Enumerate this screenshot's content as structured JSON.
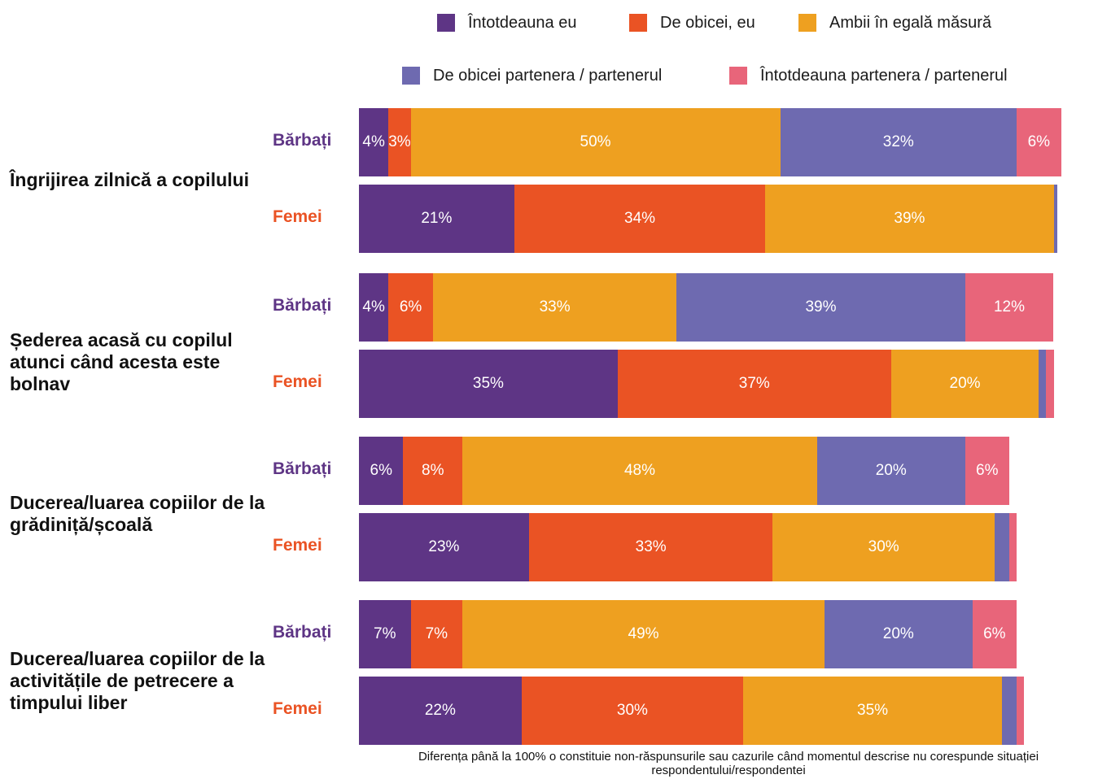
{
  "chart_data": {
    "type": "bar",
    "orientation": "horizontal-stacked",
    "legend": [
      {
        "name": "Întotdeauna eu",
        "color": "#5e3585"
      },
      {
        "name": "De obicei, eu",
        "color": "#ea5324"
      },
      {
        "name": "Ambii în egală măsură",
        "color": "#eea020"
      },
      {
        "name": "De obicei partenera / partenerul",
        "color": "#6e6ab0"
      },
      {
        "name": "Întotdeauna partenera / partenerul",
        "color": "#e8657a"
      }
    ],
    "groups": [
      {
        "title": "Îngrijirea zilnică a copilului",
        "rows": [
          {
            "label": "Bărbați",
            "values": [
              4,
              3,
              50,
              32,
              6
            ],
            "labels": [
              "4%",
              "3%",
              "50%",
              "32%",
              "6%"
            ]
          },
          {
            "label": "Femei",
            "values": [
              21,
              34,
              39,
              0.5,
              0
            ],
            "labels": [
              "21%",
              "34%",
              "39%",
              "",
              ""
            ]
          }
        ]
      },
      {
        "title": "Șederea acasă cu copilul atunci când acesta este bolnav",
        "rows": [
          {
            "label": "Bărbați",
            "values": [
              4,
              6,
              33,
              39,
              12
            ],
            "labels": [
              "4%",
              "6%",
              "33%",
              "39%",
              "12%"
            ]
          },
          {
            "label": "Femei",
            "values": [
              35,
              37,
              20,
              1,
              1
            ],
            "labels": [
              "35%",
              "37%",
              "20%",
              "",
              ""
            ]
          }
        ]
      },
      {
        "title": "Ducerea/luarea copiilor de la grădiniță/școală",
        "rows": [
          {
            "label": "Bărbați",
            "values": [
              6,
              8,
              48,
              20,
              6
            ],
            "labels": [
              "6%",
              "8%",
              "48%",
              "20%",
              "6%"
            ]
          },
          {
            "label": "Femei",
            "values": [
              23,
              33,
              30,
              2,
              1
            ],
            "labels": [
              "23%",
              "33%",
              "30%",
              "",
              ""
            ]
          }
        ]
      },
      {
        "title": "Ducerea/luarea copiilor de la activitățile de petrecere a timpului liber",
        "rows": [
          {
            "label": "Bărbați",
            "values": [
              7,
              7,
              49,
              20,
              6
            ],
            "labels": [
              "7%",
              "7%",
              "49%",
              "20%",
              "6%"
            ]
          },
          {
            "label": "Femei",
            "values": [
              22,
              30,
              35,
              2,
              1
            ],
            "labels": [
              "22%",
              "30%",
              "35%",
              "",
              ""
            ]
          }
        ]
      }
    ],
    "xlim": [
      0,
      100
    ],
    "grid": false,
    "legend_position": "top",
    "footnote": "Diferența până la 100% o constituie non-răspunsurile sau cazurile când momentul descrise nu corespunde situației respondentului/respondentei"
  }
}
